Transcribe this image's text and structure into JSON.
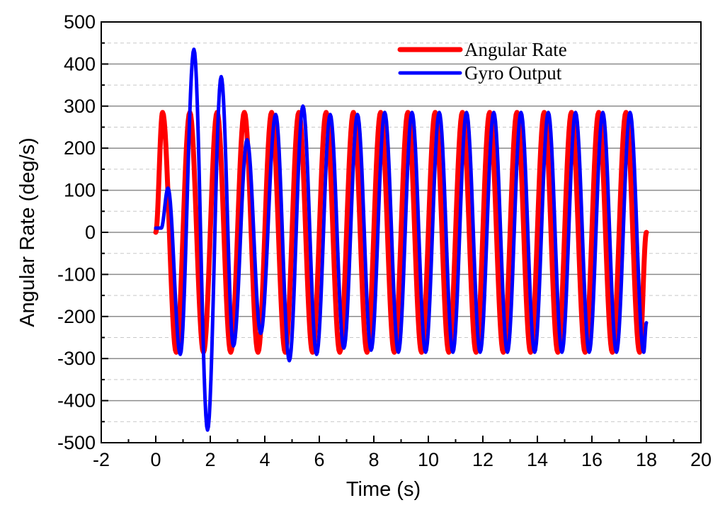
{
  "chart_data": {
    "type": "line",
    "title": "",
    "xlabel": "Time (s)",
    "ylabel": "Angular Rate (deg/s)",
    "xlim": [
      -2,
      20
    ],
    "ylim": [
      -500,
      500
    ],
    "x_ticks": [
      -2,
      0,
      2,
      4,
      6,
      8,
      10,
      12,
      14,
      16,
      18,
      20
    ],
    "y_ticks": [
      500,
      400,
      300,
      200,
      100,
      0,
      -100,
      -200,
      -300,
      -400,
      -500
    ],
    "x_tick_labels": [
      "-2",
      "0",
      "2",
      "4",
      "6",
      "8",
      "10",
      "12",
      "14",
      "16",
      "18",
      "20"
    ],
    "y_tick_labels": [
      "500",
      "400",
      "300",
      "200",
      "100",
      "0",
      "-100",
      "-200",
      "-300",
      "-400",
      "-500"
    ],
    "grid": "horizontal major solid, minor dashed",
    "legend_placement": "top-right",
    "series": [
      {
        "name": "Angular Rate",
        "color": "#ff0000",
        "description_period_s": 1.0,
        "x": [
          0,
          0.25,
          0.75,
          1.25,
          1.75,
          2.25,
          2.75,
          3.25,
          3.75,
          4.25,
          4.75,
          5.25,
          5.75,
          6.25,
          6.75,
          7.25,
          7.75,
          8.25,
          8.75,
          9.25,
          9.75,
          10.25,
          10.75,
          11.25,
          11.75,
          12.25,
          12.75,
          13.25,
          13.75,
          14.25,
          14.75,
          15.25,
          15.75,
          16.25,
          16.75,
          17.25,
          17.75,
          18.0
        ],
        "y": [
          0,
          285,
          -285,
          285,
          -285,
          285,
          -285,
          285,
          -285,
          285,
          -285,
          285,
          -285,
          285,
          -285,
          285,
          -285,
          285,
          -285,
          285,
          -285,
          285,
          -285,
          285,
          -285,
          285,
          -285,
          285,
          -285,
          285,
          -285,
          285,
          -285,
          285,
          -285,
          285,
          -285,
          0
        ]
      },
      {
        "name": "Gyro Output",
        "color": "#0000ff",
        "x": [
          0,
          0.2,
          0.45,
          0.9,
          1.4,
          1.9,
          2.4,
          2.85,
          3.35,
          3.85,
          4.4,
          4.9,
          5.4,
          5.9,
          6.4,
          6.9,
          7.4,
          7.9,
          8.4,
          8.9,
          9.4,
          9.9,
          10.4,
          10.9,
          11.4,
          11.9,
          12.4,
          12.9,
          13.4,
          13.9,
          14.4,
          14.9,
          15.4,
          15.9,
          16.4,
          16.9,
          17.4,
          17.9,
          18.0
        ],
        "y": [
          10,
          10,
          105,
          -290,
          435,
          -470,
          370,
          -270,
          220,
          -240,
          280,
          -305,
          300,
          -290,
          280,
          -275,
          280,
          -280,
          285,
          -285,
          285,
          -285,
          285,
          -285,
          285,
          -285,
          285,
          -285,
          285,
          -285,
          285,
          -285,
          285,
          -285,
          285,
          -285,
          285,
          -285,
          -215
        ]
      }
    ]
  }
}
